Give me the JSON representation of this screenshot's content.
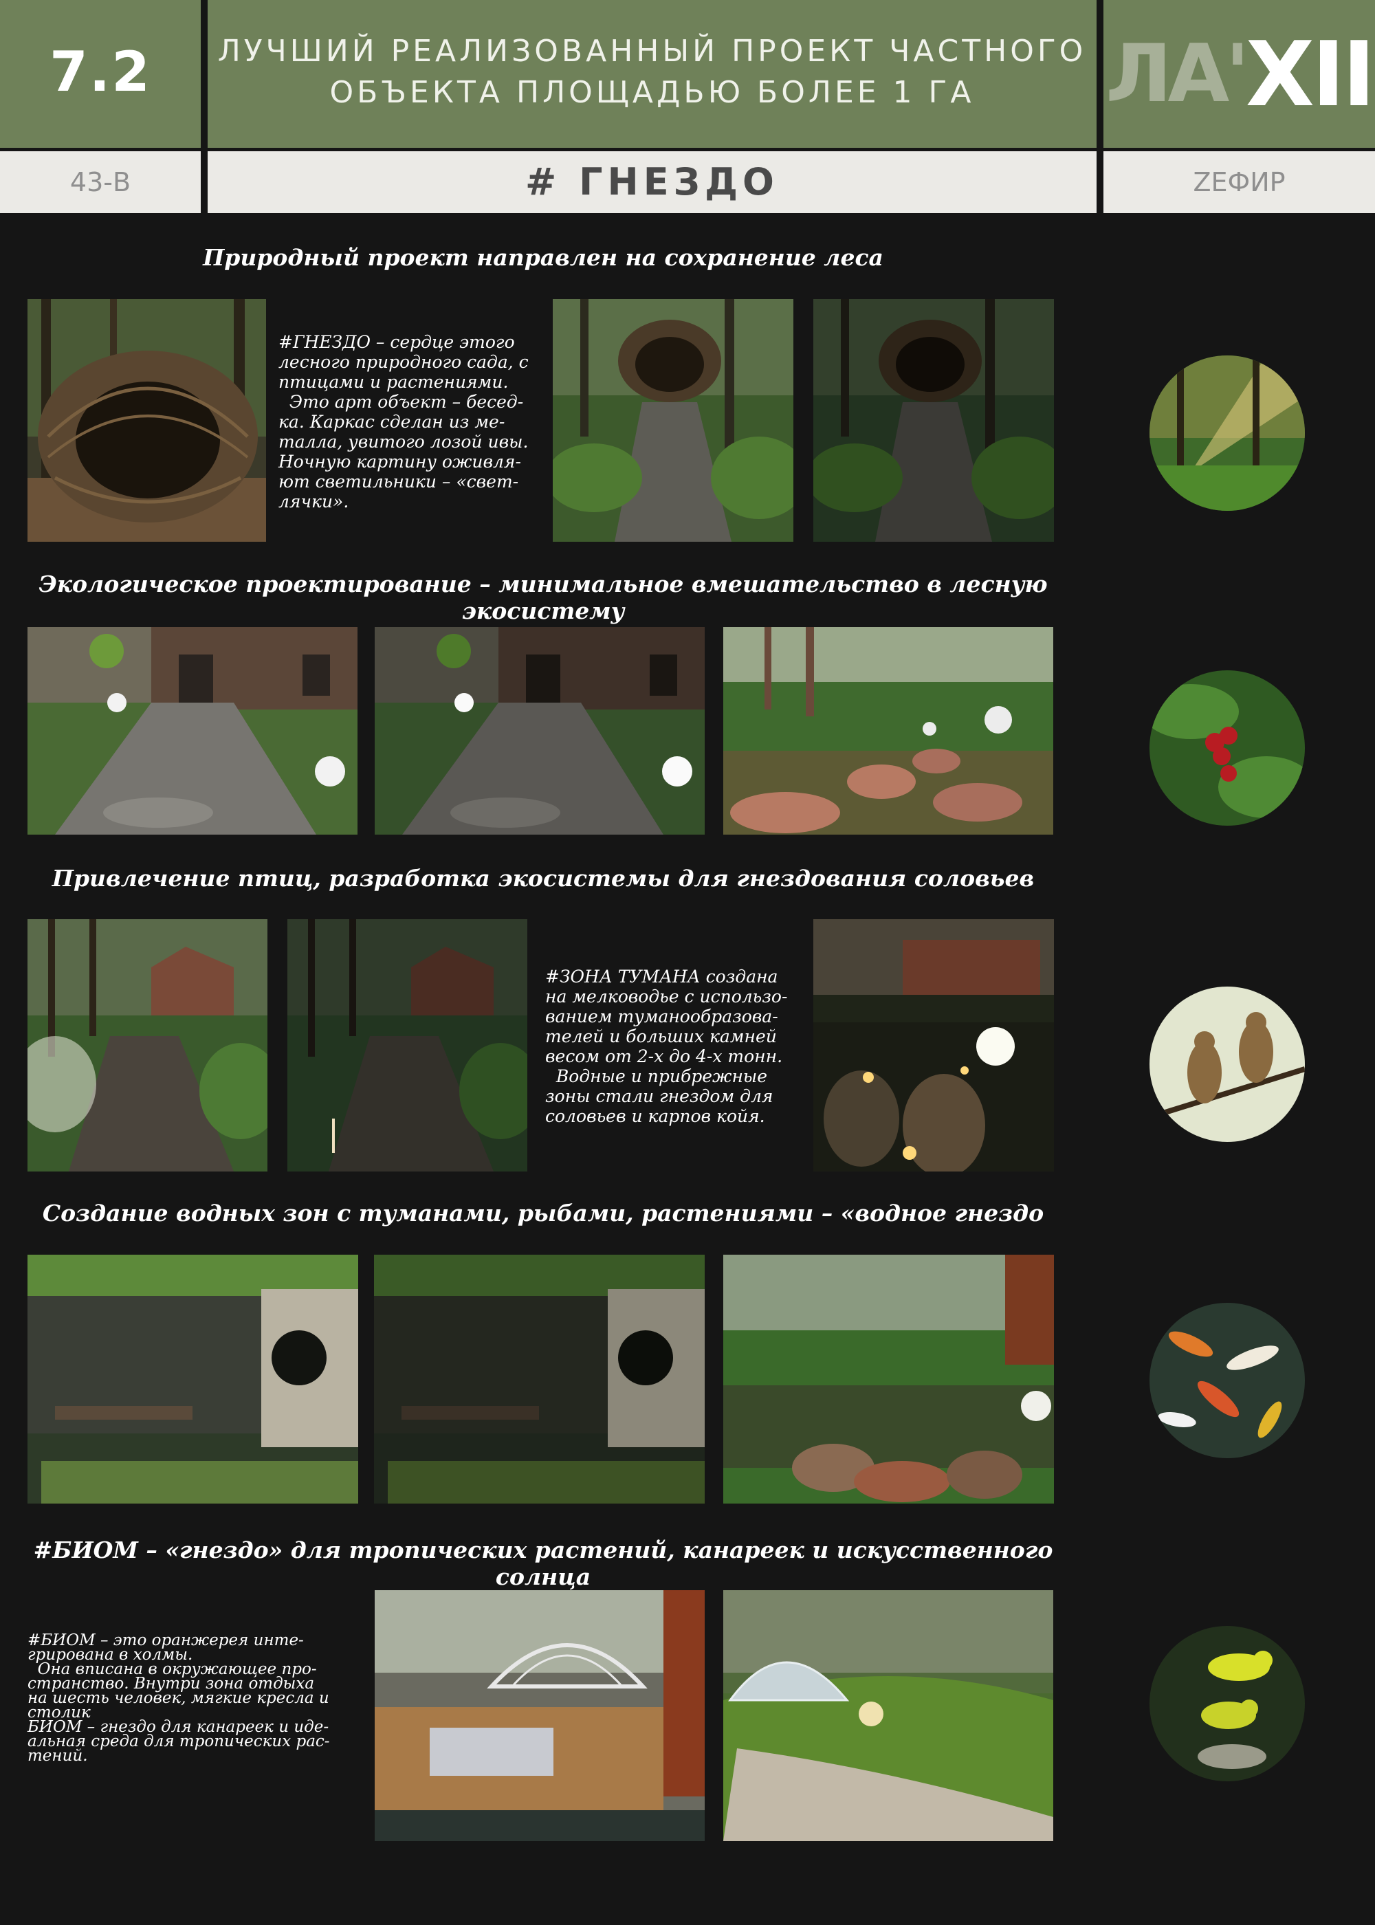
{
  "header": {
    "number": "7.2",
    "title_line1": "ЛУЧШИЙ РЕАЛИЗОВАННЫЙ ПРОЕКТ ЧАСТНОГО",
    "title_line2": "ОБЪЕКТА ПЛОЩАДЬЮ БОЛЕЕ 1 ГА",
    "logo_la": "ЛА'",
    "logo_xii": "XII",
    "code": "43-В",
    "project": "# ГНЕЗДО",
    "author": "ZЕФИР"
  },
  "sections": [
    {
      "heading": "Природный проект направлен на сохранение леса",
      "text": [
        "#ГНЕЗДО – сердце этого",
        "лесного природного сада, с",
        "птицами и растениями.",
        "  Это арт объект – бесед-",
        "ка. Каркас сделан из ме-",
        "талла, увитого лозой ивы.",
        "Ночную картину оживля-",
        "ют светильники – «свет-",
        "лячки»."
      ]
    },
    {
      "heading": "Экологическое проектирование – минимальное вмешательство в лесную экосистему"
    },
    {
      "heading": "Привлечение птиц, разработка экосистемы для гнездования соловьев",
      "text": [
        "#ЗОНА ТУМАНА создана",
        "на мелководье с использо-",
        "ванием туманообразова-",
        "телей и больших камней",
        "весом от 2-х до 4-х тонн.",
        "  Водные и прибрежные",
        "зоны стали гнездом для",
        "соловьев и карпов койя."
      ]
    },
    {
      "heading": "Создание водных зон с туманами, рыбами, растениями – «водное гнездо"
    },
    {
      "heading": "#БИОМ – «гнездо» для тропических растений, канареек и искусственного солнца",
      "text": [
        "#БИОМ – это оранжерея инте-",
        "грирована в холмы.",
        "  Она вписана в окружающее про-",
        "странство. Внутри зона отдыха",
        "на шесть человек, мягкие кресла и",
        "столик",
        "БИОМ – гнездо для канареек и иде-",
        "альная среда для тропических рас-",
        "тений."
      ]
    }
  ],
  "colors": {
    "header_green": "#6f8159",
    "subheader_bg": "#ebeae6",
    "background": "#151515"
  }
}
